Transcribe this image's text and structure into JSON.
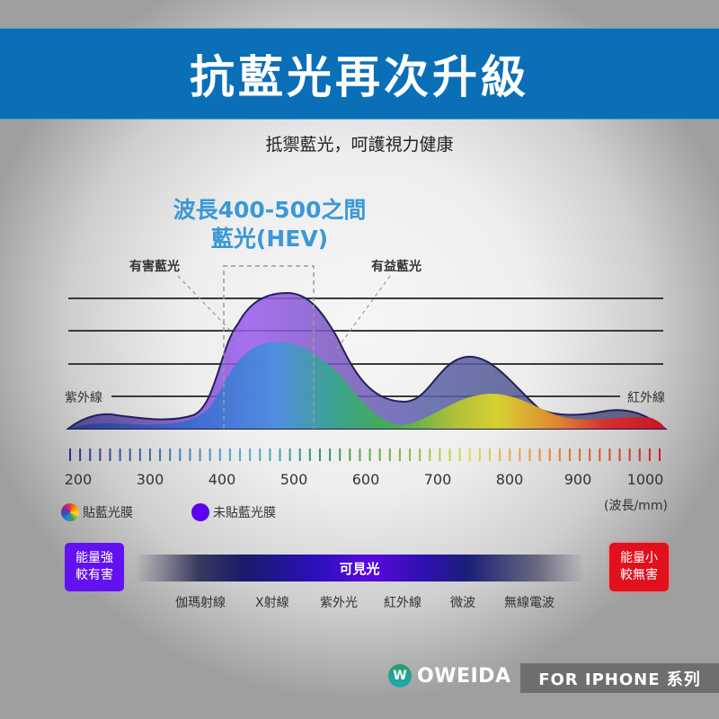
{
  "header": {
    "title": "抗藍光再次升級",
    "subtitle": "抵禦藍光，呵護視力健康"
  },
  "annotations": {
    "hev_line1": "波長400-500之間",
    "hev_line2": "藍光(HEV)",
    "harmful": "有害藍光",
    "beneficial": "有益藍光",
    "uv": "紫外線",
    "ir": "紅外線"
  },
  "axis": {
    "ticks": [
      "200",
      "300",
      "400",
      "500",
      "600",
      "700",
      "800",
      "900",
      "1000"
    ],
    "unit": "(波長/mm)"
  },
  "legend": {
    "film": "貼藍光膜",
    "no_film": "未貼藍光膜"
  },
  "energy": {
    "strong_line1": "能量強",
    "strong_line2": "較有害",
    "weak_line1": "能量小",
    "weak_line2": "較無害",
    "visible": "可見光"
  },
  "bands": [
    "伽瑪射線",
    "X射線",
    "紫外光",
    "紅外線",
    "微波",
    "無線電波"
  ],
  "footer": {
    "brand": "OWEIDA",
    "logo_letter": "W",
    "series": "FOR IPHONE 系列"
  },
  "colors": {
    "banner": "#0b6fb8",
    "hev_text": "#3a98d8",
    "no_film": "#5d00f0",
    "energy_strong": "#6311f0",
    "energy_weak": "#e0101c"
  },
  "chart_data": {
    "type": "area",
    "title": "抗藍光再次升級",
    "xlabel": "(波長/mm)",
    "ylabel": "",
    "x": [
      200,
      250,
      300,
      350,
      400,
      450,
      475,
      500,
      550,
      600,
      650,
      700,
      750,
      800,
      850,
      900,
      950,
      1000
    ],
    "xlim": [
      200,
      1000
    ],
    "ylim": [
      0,
      4
    ],
    "grid": true,
    "legend_position": "bottom-left",
    "series": [
      {
        "name": "未貼藍光膜",
        "values": [
          0.3,
          0.45,
          0.3,
          0.35,
          1.6,
          3.7,
          4.1,
          3.9,
          2.2,
          0.9,
          0.8,
          1.5,
          2.2,
          1.6,
          0.6,
          0.55,
          0.6,
          0.0
        ]
      },
      {
        "name": "貼藍光膜",
        "values": [
          0.1,
          0.2,
          0.2,
          0.25,
          1.0,
          2.5,
          2.7,
          2.6,
          1.6,
          0.4,
          0.3,
          0.6,
          1.0,
          1.0,
          0.5,
          0.3,
          0.35,
          0.0
        ]
      }
    ],
    "annotations": [
      {
        "text": "波長400-500之間 藍光(HEV)",
        "range": [
          400,
          500
        ]
      },
      {
        "text": "有害藍光",
        "x": 420
      },
      {
        "text": "有益藍光",
        "x": 560
      },
      {
        "text": "紫外線",
        "side": "left"
      },
      {
        "text": "紅外線",
        "side": "right"
      }
    ]
  }
}
